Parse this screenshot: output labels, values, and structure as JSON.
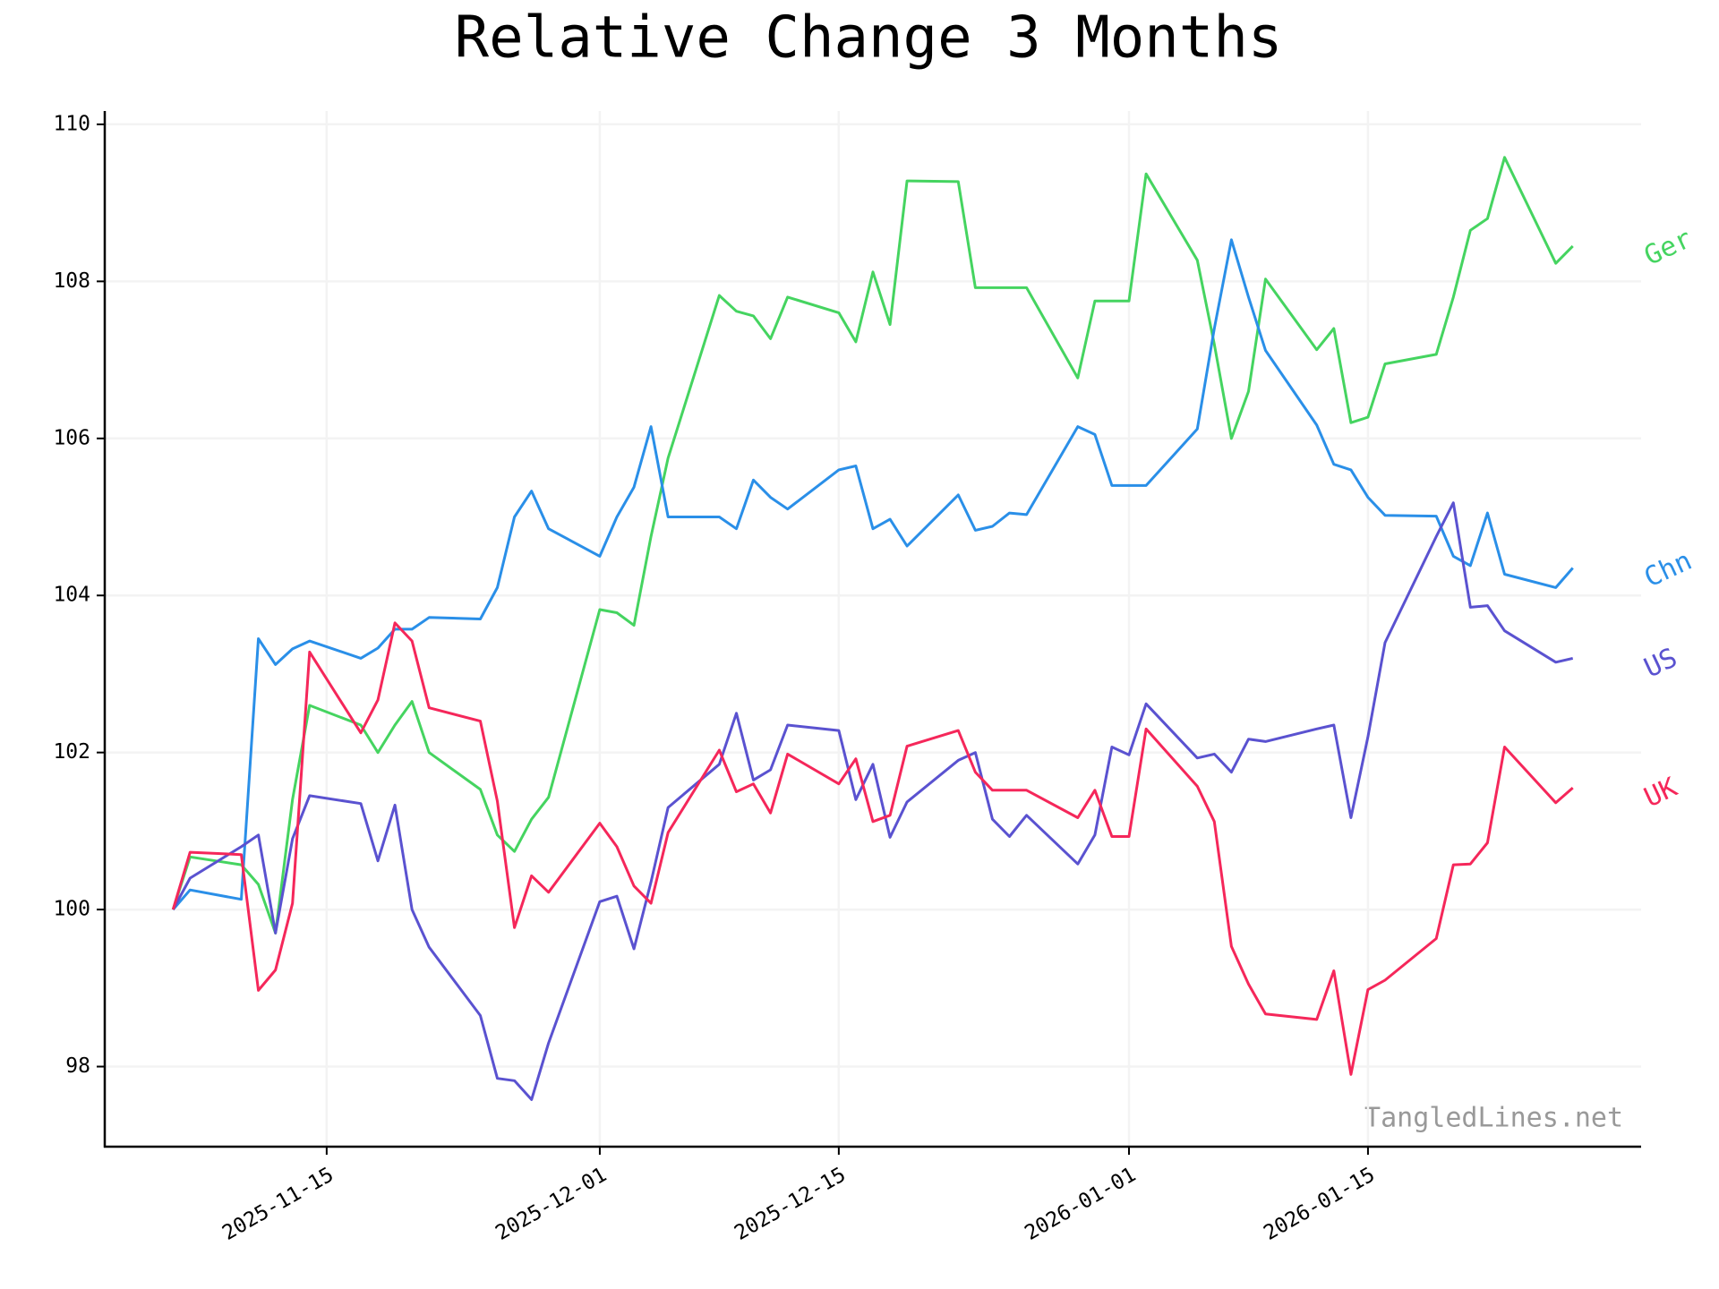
{
  "chart_data": {
    "type": "line",
    "title": "Relative Change 3 Months",
    "watermark": "TangledLines.net",
    "x": [
      "2025-11-06",
      "2025-11-07",
      "2025-11-10",
      "2025-11-11",
      "2025-11-12",
      "2025-11-13",
      "2025-11-14",
      "2025-11-17",
      "2025-11-18",
      "2025-11-19",
      "2025-11-20",
      "2025-11-21",
      "2025-11-24",
      "2025-11-25",
      "2025-11-26",
      "2025-11-27",
      "2025-11-28",
      "2025-12-01",
      "2025-12-02",
      "2025-12-03",
      "2025-12-04",
      "2025-12-05",
      "2025-12-08",
      "2025-12-09",
      "2025-12-10",
      "2025-12-11",
      "2025-12-12",
      "2025-12-15",
      "2025-12-16",
      "2025-12-17",
      "2025-12-18",
      "2025-12-19",
      "2025-12-22",
      "2025-12-23",
      "2025-12-24",
      "2025-12-25",
      "2025-12-26",
      "2025-12-29",
      "2025-12-30",
      "2025-12-31",
      "2026-01-01",
      "2026-01-02",
      "2026-01-05",
      "2026-01-06",
      "2026-01-07",
      "2026-01-08",
      "2026-01-09",
      "2026-01-12",
      "2026-01-13",
      "2026-01-14",
      "2026-01-15",
      "2026-01-16",
      "2026-01-19",
      "2026-01-20",
      "2026-01-21",
      "2026-01-22",
      "2026-01-23",
      "2026-01-26",
      "2026-01-27"
    ],
    "series": [
      {
        "name": "Ger",
        "color": "#45d460",
        "values": [
          100,
          100.67,
          100.57,
          100.32,
          99.7,
          101.4,
          102.6,
          102.35,
          102.0,
          102.35,
          102.65,
          102.0,
          101.53,
          100.95,
          100.74,
          101.15,
          101.43,
          103.82,
          103.78,
          103.62,
          104.75,
          105.75,
          107.82,
          107.62,
          107.56,
          107.27,
          107.8,
          107.6,
          107.23,
          108.12,
          107.45,
          109.28,
          109.27,
          107.92,
          107.92,
          107.92,
          107.92,
          106.77,
          107.75,
          107.75,
          107.75,
          109.37,
          108.27,
          107.2,
          106.0,
          106.6,
          108.03,
          107.13,
          107.4,
          106.2,
          106.27,
          106.95,
          107.07,
          107.8,
          108.65,
          108.8,
          109.58,
          108.23,
          108.45
        ]
      },
      {
        "name": "Chn",
        "color": "#2a8fe8",
        "values": [
          100,
          100.25,
          100.13,
          103.45,
          103.12,
          103.32,
          103.42,
          103.2,
          103.33,
          103.57,
          103.57,
          103.72,
          103.7,
          104.1,
          105.0,
          105.33,
          104.85,
          104.5,
          105.0,
          105.38,
          106.15,
          105.0,
          105.0,
          104.85,
          105.47,
          105.25,
          105.1,
          105.6,
          105.65,
          104.85,
          104.97,
          104.63,
          105.28,
          104.83,
          104.88,
          105.05,
          105.03,
          106.15,
          106.05,
          105.4,
          105.4,
          105.4,
          106.12,
          107.4,
          108.53,
          107.8,
          107.12,
          106.17,
          105.67,
          105.6,
          105.25,
          105.02,
          105.01,
          104.5,
          104.38,
          105.05,
          104.27,
          104.1,
          104.35
        ]
      },
      {
        "name": "US",
        "color": "#5a52d0",
        "values": [
          100,
          100.4,
          100.8,
          100.95,
          99.7,
          100.9,
          101.45,
          101.35,
          100.62,
          101.33,
          100.0,
          99.52,
          98.65,
          97.85,
          97.82,
          97.58,
          98.3,
          100.1,
          100.17,
          99.5,
          100.35,
          101.3,
          101.85,
          102.5,
          101.65,
          101.78,
          102.35,
          102.28,
          101.4,
          101.85,
          100.92,
          101.37,
          101.9,
          102.0,
          101.15,
          100.93,
          101.2,
          100.58,
          100.95,
          102.07,
          101.97,
          102.62,
          101.93,
          101.98,
          101.75,
          102.17,
          102.14,
          102.3,
          102.35,
          101.17,
          102.2,
          103.4,
          104.75,
          105.18,
          103.85,
          103.87,
          103.55,
          103.15,
          103.2
        ]
      },
      {
        "name": "UK",
        "color": "#f5275a",
        "values": [
          100,
          100.73,
          100.7,
          98.97,
          99.23,
          100.08,
          103.28,
          102.25,
          102.67,
          103.65,
          103.42,
          102.57,
          102.4,
          101.38,
          99.77,
          100.43,
          100.22,
          101.1,
          100.8,
          100.3,
          100.08,
          100.98,
          102.03,
          101.5,
          101.6,
          101.23,
          101.98,
          101.6,
          101.92,
          101.12,
          101.2,
          102.08,
          102.28,
          101.75,
          101.52,
          101.52,
          101.52,
          101.17,
          101.52,
          100.93,
          100.93,
          102.3,
          101.57,
          101.12,
          99.53,
          99.05,
          98.67,
          98.6,
          99.22,
          97.9,
          98.98,
          99.1,
          99.63,
          100.57,
          100.58,
          100.85,
          102.07,
          101.36,
          101.55
        ]
      }
    ],
    "xlim": [
      "2025-11-02",
      "2026-01-31"
    ],
    "xticks": [
      "2025-11-15",
      "2025-12-01",
      "2025-12-15",
      "2026-01-01",
      "2026-01-15"
    ],
    "ylim": [
      96.98,
      110.17
    ],
    "yticks": [
      98,
      100,
      102,
      104,
      106,
      108,
      110
    ],
    "grid": true
  }
}
